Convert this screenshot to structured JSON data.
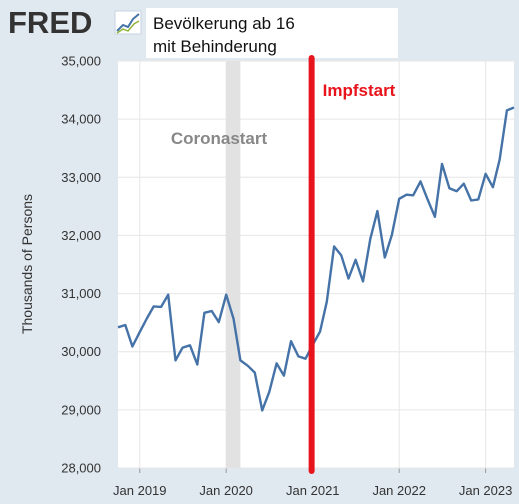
{
  "header": {
    "logo_text": "FRED",
    "title_line1": "Bevölkerung ab 16",
    "title_line2": "mit Behinderung"
  },
  "colors": {
    "line": "#4572a7",
    "event_line": "#e8141c",
    "recession_band": "#e2e2e2",
    "logo": "#333333"
  },
  "chart_data": {
    "type": "line",
    "title": "Bevölkerung ab 16 mit Behinderung",
    "xlabel": "",
    "ylabel": "Thousands of Persons",
    "ylim": [
      28000,
      35000
    ],
    "yticks": [
      28000,
      29000,
      30000,
      31000,
      32000,
      33000,
      34000,
      35000
    ],
    "ytick_labels": [
      "28,000",
      "29,000",
      "30,000",
      "31,000",
      "32,000",
      "33,000",
      "34,000",
      "35,000"
    ],
    "xlim": [
      "2018-10",
      "2023-05"
    ],
    "xticks": [
      "2019-01",
      "2020-01",
      "2021-01",
      "2022-01",
      "2023-01"
    ],
    "xtick_labels": [
      "Jan 2019",
      "Jan 2020",
      "Jan 2021",
      "Jan 2022",
      "Jan 2023"
    ],
    "grid": true,
    "series": [
      {
        "x": [
          "2018-10",
          "2018-11",
          "2018-12",
          "2019-01",
          "2019-02",
          "2019-03",
          "2019-04",
          "2019-05",
          "2019-06",
          "2019-07",
          "2019-08",
          "2019-09",
          "2019-10",
          "2019-11",
          "2019-12",
          "2020-01",
          "2020-02",
          "2020-03",
          "2020-04",
          "2020-05",
          "2020-06",
          "2020-07",
          "2020-08",
          "2020-09",
          "2020-10",
          "2020-11",
          "2020-12",
          "2021-01",
          "2021-02",
          "2021-03",
          "2021-04",
          "2021-05",
          "2021-06",
          "2021-07",
          "2021-08",
          "2021-09",
          "2021-10",
          "2021-11",
          "2021-12",
          "2022-01",
          "2022-02",
          "2022-03",
          "2022-04",
          "2022-05",
          "2022-06",
          "2022-07",
          "2022-08",
          "2022-09",
          "2022-10",
          "2022-11",
          "2022-12",
          "2023-01",
          "2023-02",
          "2023-03",
          "2023-04",
          "2023-05"
        ],
        "values": [
          30420,
          30460,
          30090,
          30340,
          30580,
          30780,
          30770,
          30980,
          29850,
          30070,
          30110,
          29780,
          30670,
          30700,
          30510,
          30980,
          30570,
          29850,
          29760,
          29640,
          28990,
          29310,
          29800,
          29590,
          30180,
          29920,
          29880,
          30120,
          30350,
          30860,
          31810,
          31660,
          31260,
          31580,
          31210,
          31940,
          32420,
          31620,
          32010,
          32630,
          32700,
          32690,
          32930,
          32620,
          32320,
          33230,
          32810,
          32760,
          32890,
          32600,
          32620,
          33060,
          32830,
          33300,
          34150,
          34200
        ]
      }
    ],
    "annotations": [
      {
        "label": "Coronastart",
        "x": "2020-02",
        "kind": "band",
        "x_start": "2020-01",
        "x_end": "2020-03"
      },
      {
        "label": "Impfstart",
        "x": "2020-12-27",
        "kind": "vertical-line"
      }
    ]
  }
}
